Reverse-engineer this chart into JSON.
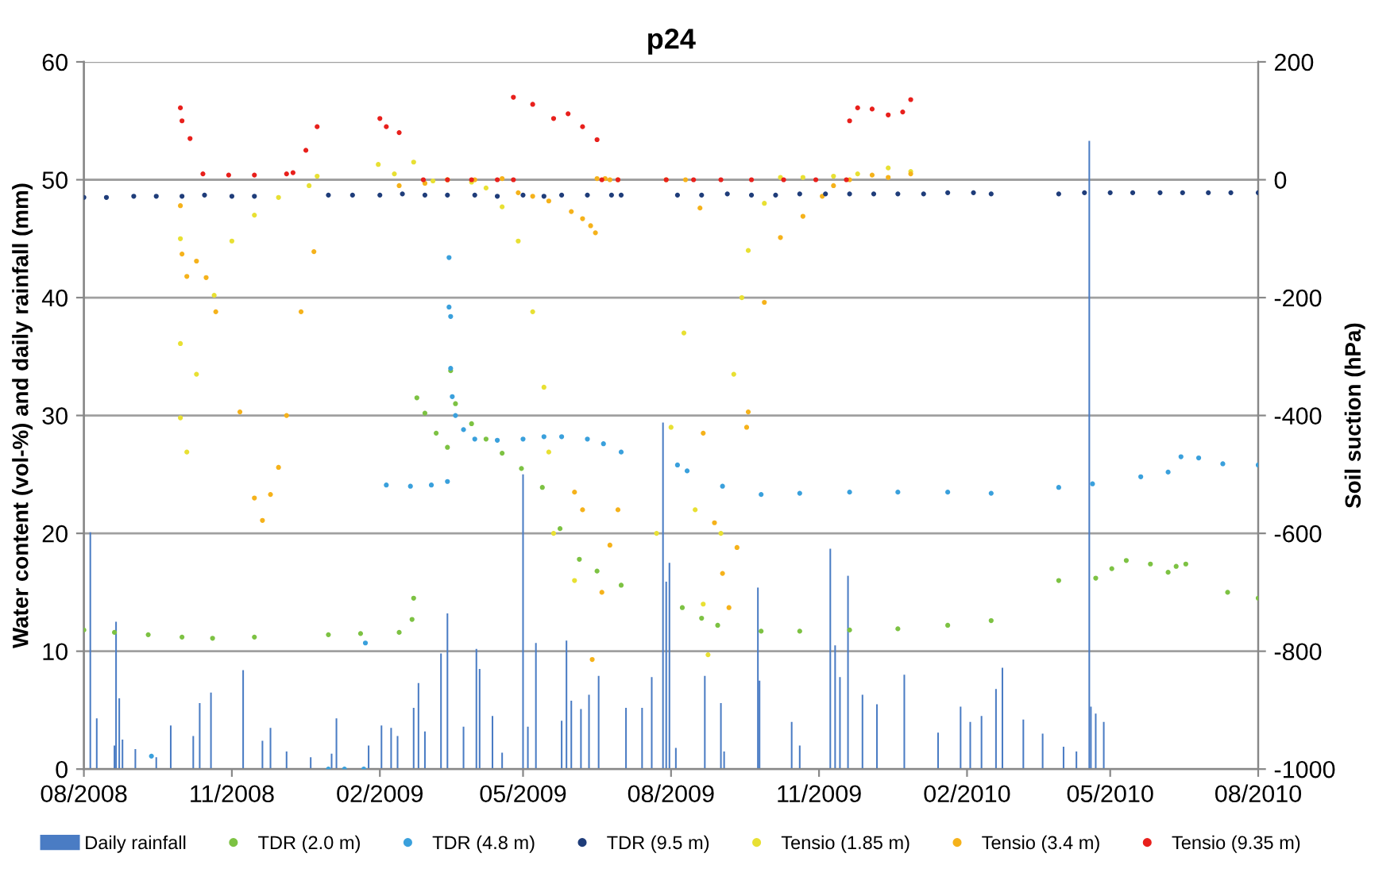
{
  "chart_data": {
    "type": "scatter",
    "title": "p24",
    "ylabel": "Water content (vol-%) and daily rainfall (mm)",
    "y2label": "Soil suction (hPa)",
    "xlim": [
      "2008-08-01",
      "2010-08-01"
    ],
    "xticks": [
      {
        "value": "2008-08-01",
        "label": "08/2008"
      },
      {
        "value": "2008-11-01",
        "label": "11/2008"
      },
      {
        "value": "2009-02-01",
        "label": "02/2009"
      },
      {
        "value": "2009-05-01",
        "label": "05/2009"
      },
      {
        "value": "2009-08-01",
        "label": "08/2009"
      },
      {
        "value": "2009-11-01",
        "label": "11/2009"
      },
      {
        "value": "2010-02-01",
        "label": "02/2010"
      },
      {
        "value": "2010-05-01",
        "label": "05/2010"
      },
      {
        "value": "2010-08-01",
        "label": "08/2010"
      }
    ],
    "ylim": [
      0,
      60
    ],
    "yticks": [
      0,
      10,
      20,
      30,
      40,
      50,
      60
    ],
    "y2lim": [
      -1000,
      200
    ],
    "y2ticks": [
      -1000,
      -800,
      -600,
      -400,
      -200,
      0,
      200
    ],
    "grid": "y",
    "legend": "bottom",
    "marker": "circle",
    "series": [
      {
        "name": "Daily rainfall",
        "type": "bar",
        "color": "#4a7cc4",
        "x": [
          "2008-08-05",
          "2008-08-09",
          "2008-08-20",
          "2008-08-21",
          "2008-08-23",
          "2008-08-25",
          "2008-09-02",
          "2008-09-15",
          "2008-09-24",
          "2008-10-08",
          "2008-10-12",
          "2008-10-19",
          "2008-11-08",
          "2008-11-20",
          "2008-11-25",
          "2008-12-05",
          "2008-12-20",
          "2009-01-02",
          "2009-01-05",
          "2009-01-25",
          "2009-02-02",
          "2009-02-08",
          "2009-02-12",
          "2009-02-22",
          "2009-02-25",
          "2009-03-01",
          "2009-03-11",
          "2009-03-15",
          "2009-03-25",
          "2009-04-02",
          "2009-04-04",
          "2009-04-12",
          "2009-04-18",
          "2009-05-01",
          "2009-05-04",
          "2009-05-09",
          "2009-05-25",
          "2009-05-28",
          "2009-05-31",
          "2009-06-06",
          "2009-06-11",
          "2009-06-17",
          "2009-07-04",
          "2009-07-14",
          "2009-07-20",
          "2009-07-27",
          "2009-07-29",
          "2009-07-31",
          "2009-08-04",
          "2009-08-22",
          "2009-09-01",
          "2009-09-03",
          "2009-09-24",
          "2009-09-25",
          "2009-10-15",
          "2009-10-20",
          "2009-11-08",
          "2009-11-11",
          "2009-11-14",
          "2009-11-19",
          "2009-11-28",
          "2009-12-07",
          "2009-12-24",
          "2010-01-14",
          "2010-01-28",
          "2010-02-03",
          "2010-02-10",
          "2010-02-19",
          "2010-02-23",
          "2010-03-08",
          "2010-03-20",
          "2010-04-02",
          "2010-04-10",
          "2010-04-18",
          "2010-04-19",
          "2010-04-22",
          "2010-04-27"
        ],
        "values": [
          20.1,
          4.3,
          2.0,
          12.5,
          6.0,
          2.5,
          1.7,
          1.0,
          3.7,
          2.8,
          5.6,
          6.5,
          8.4,
          2.4,
          3.5,
          1.5,
          1.0,
          1.3,
          4.3,
          2.0,
          3.7,
          3.5,
          2.8,
          5.2,
          7.3,
          3.2,
          9.8,
          13.2,
          3.6,
          10.2,
          8.5,
          4.5,
          1.4,
          25.0,
          3.6,
          10.7,
          4.1,
          10.9,
          5.8,
          5.1,
          6.3,
          7.9,
          5.2,
          5.2,
          7.8,
          29.4,
          15.9,
          17.5,
          1.8,
          7.9,
          5.6,
          1.5,
          15.4,
          7.5,
          4.0,
          2.0,
          18.7,
          10.5,
          7.8,
          16.4,
          6.3,
          5.5,
          8.0,
          3.1,
          5.3,
          4.0,
          4.5,
          6.8,
          8.6,
          4.2,
          3.0,
          1.9,
          1.5,
          53.3,
          5.3,
          4.7,
          4.0
        ]
      },
      {
        "name": "TDR (2.0 m)",
        "color": "#7dc243",
        "x": [
          "2008-08-01",
          "2008-08-20",
          "2008-09-10",
          "2008-10-01",
          "2008-10-20",
          "2008-11-15",
          "2008-12-31",
          "2009-01-20",
          "2009-02-13",
          "2009-02-21",
          "2009-02-22",
          "2009-02-24",
          "2009-03-01",
          "2009-03-08",
          "2009-03-15",
          "2009-03-17",
          "2009-03-20",
          "2009-03-30",
          "2009-04-08",
          "2009-04-18",
          "2009-04-30",
          "2009-05-13",
          "2009-05-24",
          "2009-06-05",
          "2009-06-16",
          "2009-07-01",
          "2009-08-08",
          "2009-08-20",
          "2009-08-30",
          "2009-09-26",
          "2009-10-20",
          "2009-11-20",
          "2009-12-20",
          "2010-01-20",
          "2010-02-16",
          "2010-03-30",
          "2010-04-22",
          "2010-05-02",
          "2010-05-11",
          "2010-05-26",
          "2010-06-06",
          "2010-06-11",
          "2010-06-17",
          "2010-07-13",
          "2010-08-01"
        ],
        "values": [
          11.8,
          11.6,
          11.4,
          11.2,
          11.1,
          11.2,
          11.4,
          11.5,
          11.6,
          12.7,
          14.5,
          31.5,
          30.2,
          28.5,
          27.3,
          33.8,
          31.0,
          29.3,
          28.0,
          26.8,
          25.5,
          23.9,
          20.4,
          17.8,
          16.8,
          15.6,
          13.7,
          12.8,
          12.2,
          11.7,
          11.7,
          11.8,
          11.9,
          12.2,
          12.6,
          16.0,
          16.2,
          17.0,
          17.7,
          17.4,
          16.7,
          17.2,
          17.4,
          15.0,
          14.5
        ]
      },
      {
        "name": "TDR (4.8 m)",
        "color": "#3aa0dc",
        "x": [
          "2008-09-12",
          "2008-12-31",
          "2009-01-10",
          "2009-01-22",
          "2009-01-23",
          "2009-02-05",
          "2009-02-20",
          "2009-03-05",
          "2009-03-15",
          "2009-03-16",
          "2009-03-16",
          "2009-03-17",
          "2009-03-17",
          "2009-03-18",
          "2009-03-20",
          "2009-03-25",
          "2009-04-01",
          "2009-04-15",
          "2009-05-01",
          "2009-05-14",
          "2009-05-25",
          "2009-06-10",
          "2009-06-20",
          "2009-07-01",
          "2009-08-05",
          "2009-08-11",
          "2009-09-02",
          "2009-09-26",
          "2009-10-20",
          "2009-11-20",
          "2009-12-20",
          "2010-01-20",
          "2010-02-16",
          "2010-03-30",
          "2010-04-20",
          "2010-05-20",
          "2010-06-06",
          "2010-06-14",
          "2010-06-25",
          "2010-07-10",
          "2010-08-01"
        ],
        "values": [
          1.1,
          0.0,
          0.0,
          0.0,
          10.7,
          24.1,
          24.0,
          24.1,
          24.4,
          43.4,
          39.2,
          38.4,
          34.0,
          31.6,
          30.0,
          28.8,
          28.0,
          27.9,
          28.0,
          28.2,
          28.2,
          28.0,
          27.6,
          26.9,
          25.8,
          25.3,
          24.0,
          23.3,
          23.4,
          23.5,
          23.5,
          23.5,
          23.4,
          23.9,
          24.2,
          24.8,
          25.2,
          26.5,
          26.4,
          25.9,
          25.8
        ]
      },
      {
        "name": "TDR (9.5 m)",
        "color": "#1f3d7a",
        "x": [
          "2008-08-01",
          "2008-08-15",
          "2008-09-01",
          "2008-09-15",
          "2008-10-01",
          "2008-10-15",
          "2008-11-01",
          "2008-11-15",
          "2008-12-31",
          "2009-01-15",
          "2009-02-01",
          "2009-02-15",
          "2009-03-01",
          "2009-03-15",
          "2009-04-01",
          "2009-04-15",
          "2009-05-01",
          "2009-05-14",
          "2009-05-25",
          "2009-06-10",
          "2009-06-25",
          "2009-07-01",
          "2009-08-05",
          "2009-08-20",
          "2009-09-05",
          "2009-09-20",
          "2009-10-05",
          "2009-10-20",
          "2009-11-05",
          "2009-11-20",
          "2009-12-05",
          "2009-12-20",
          "2010-01-05",
          "2010-01-20",
          "2010-02-05",
          "2010-02-16",
          "2010-03-30",
          "2010-04-15",
          "2010-05-01",
          "2010-05-15",
          "2010-06-01",
          "2010-06-15",
          "2010-07-01",
          "2010-07-15",
          "2010-08-01"
        ],
        "values": [
          48.5,
          48.5,
          48.6,
          48.6,
          48.6,
          48.7,
          48.6,
          48.6,
          48.7,
          48.7,
          48.7,
          48.8,
          48.7,
          48.7,
          48.7,
          48.6,
          48.7,
          48.6,
          48.7,
          48.7,
          48.7,
          48.7,
          48.7,
          48.7,
          48.8,
          48.7,
          48.7,
          48.8,
          48.8,
          48.8,
          48.8,
          48.8,
          48.8,
          48.9,
          48.9,
          48.8,
          48.8,
          48.9,
          48.9,
          48.9,
          48.9,
          48.9,
          48.9,
          48.9,
          48.9
        ]
      },
      {
        "name": "Tensio (1.85 m)",
        "color": "#e8e033",
        "axis": "y2",
        "x": [
          "2008-09-30",
          "2008-09-30",
          "2008-09-30",
          "2008-10-04",
          "2008-10-10",
          "2008-10-21",
          "2008-11-01",
          "2008-11-15",
          "2008-11-30",
          "2008-12-19",
          "2008-12-24",
          "2009-01-31",
          "2009-02-10",
          "2009-02-22",
          "2009-03-06",
          "2009-03-15",
          "2009-03-30",
          "2009-04-08",
          "2009-04-18",
          "2009-04-28",
          "2009-05-07",
          "2009-05-14",
          "2009-05-17",
          "2009-05-20",
          "2009-06-02",
          "2009-07-23",
          "2009-08-01",
          "2009-08-09",
          "2009-08-16",
          "2009-08-21",
          "2009-08-24",
          "2009-09-01",
          "2009-09-09",
          "2009-09-14",
          "2009-09-18",
          "2009-09-28",
          "2009-10-08",
          "2009-10-22",
          "2009-11-10",
          "2009-11-25",
          "2009-12-14",
          "2009-12-28"
        ],
        "values": [
          -100,
          -278,
          -404,
          -462,
          -330,
          -196,
          -104,
          -60,
          -30,
          -10,
          6,
          26,
          10,
          30,
          -2,
          0,
          -4,
          -14,
          -46,
          -104,
          -224,
          -352,
          -462,
          -600,
          -680,
          -600,
          -420,
          -260,
          -560,
          -720,
          -806,
          -600,
          -330,
          -200,
          -120,
          -40,
          4,
          4,
          6,
          10,
          20,
          14
        ]
      },
      {
        "name": "Tensio (3.4 m)",
        "color": "#f5b21b",
        "axis": "y2",
        "x": [
          "2008-09-30",
          "2008-10-01",
          "2008-10-04",
          "2008-10-10",
          "2008-10-16",
          "2008-10-22",
          "2008-11-06",
          "2008-11-15",
          "2008-11-20",
          "2008-11-25",
          "2008-11-30",
          "2008-12-05",
          "2008-12-14",
          "2008-12-22",
          "2009-02-13",
          "2009-03-01",
          "2009-03-15",
          "2009-04-01",
          "2009-04-18",
          "2009-04-28",
          "2009-05-07",
          "2009-05-17",
          "2009-05-31",
          "2009-06-07",
          "2009-06-12",
          "2009-06-15",
          "2009-06-16",
          "2009-06-21",
          "2009-06-24",
          "2009-06-29",
          "2009-06-02",
          "2009-06-07",
          "2009-06-13",
          "2009-06-19",
          "2009-06-24",
          "2009-06-29",
          "2009-07-29",
          "2009-08-10",
          "2009-08-19",
          "2009-08-21",
          "2009-08-28",
          "2009-09-02",
          "2009-09-06",
          "2009-09-11",
          "2009-09-17",
          "2009-09-18",
          "2009-09-28",
          "2009-10-08",
          "2009-10-22",
          "2009-11-03",
          "2009-11-10",
          "2009-11-20",
          "2009-12-04",
          "2009-12-14",
          "2009-12-28"
        ],
        "values": [
          -44,
          -126,
          -164,
          -138,
          -166,
          -224,
          -394,
          -540,
          -578,
          -534,
          -488,
          -400,
          -224,
          -122,
          -10,
          -6,
          0,
          0,
          2,
          -22,
          -28,
          -36,
          -54,
          -66,
          -78,
          -90,
          2,
          2,
          0,
          0,
          -530,
          -560,
          -814,
          -700,
          -620,
          -560,
          0,
          0,
          -48,
          -430,
          -582,
          -668,
          -726,
          -624,
          -420,
          -394,
          -208,
          -98,
          -62,
          -28,
          -10,
          0,
          8,
          4,
          10
        ]
      },
      {
        "name": "Tensio (9.35 m)",
        "color": "#e8201c",
        "axis": "y2",
        "x": [
          "2008-09-30",
          "2008-10-01",
          "2008-10-06",
          "2008-10-14",
          "2008-10-30",
          "2008-11-15",
          "2008-12-05",
          "2008-12-09",
          "2008-12-17",
          "2008-12-24",
          "2009-02-01",
          "2009-02-05",
          "2009-02-13",
          "2009-02-28",
          "2009-03-15",
          "2009-03-30",
          "2009-04-15",
          "2009-04-25",
          "2009-04-25",
          "2009-05-07",
          "2009-05-20",
          "2009-05-29",
          "2009-06-07",
          "2009-06-16",
          "2009-06-19",
          "2009-06-29",
          "2009-07-29",
          "2009-08-15",
          "2009-09-01",
          "2009-09-20",
          "2009-10-10",
          "2009-10-30",
          "2009-11-18",
          "2009-11-20",
          "2009-11-25",
          "2009-12-04",
          "2009-12-14",
          "2009-12-23",
          "2009-12-28"
        ],
        "values": [
          122,
          100,
          70,
          10,
          8,
          8,
          10,
          12,
          50,
          90,
          104,
          90,
          80,
          0,
          0,
          0,
          0,
          0,
          140,
          128,
          104,
          112,
          90,
          68,
          0,
          0,
          0,
          0,
          0,
          0,
          0,
          0,
          0,
          100,
          122,
          120,
          110,
          115,
          136
        ]
      }
    ]
  }
}
